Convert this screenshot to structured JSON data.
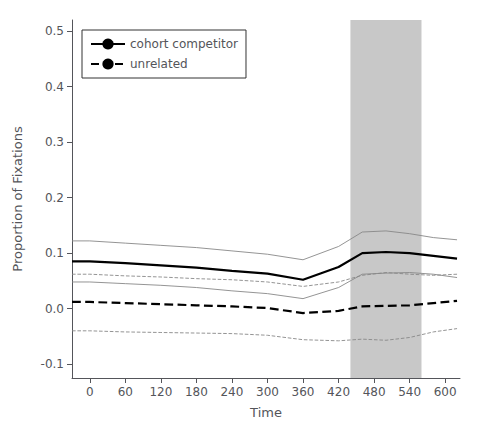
{
  "chart_data": {
    "type": "line",
    "xlabel": "Time",
    "ylabel": "Proportion of Fixations",
    "x": [
      -30,
      0,
      60,
      120,
      180,
      240,
      300,
      360,
      420,
      460,
      500,
      540,
      580,
      620
    ],
    "series": [
      {
        "color": "#888888",
        "line_style": "solid",
        "values": [
          0.122,
          0.122,
          0.118,
          0.114,
          0.11,
          0.104,
          0.098,
          0.088,
          0.112,
          0.138,
          0.14,
          0.135,
          0.128,
          0.124
        ]
      },
      {
        "color": "#888888",
        "line_style": "solid",
        "values": [
          0.048,
          0.048,
          0.045,
          0.042,
          0.038,
          0.032,
          0.027,
          0.018,
          0.038,
          0.062,
          0.064,
          0.065,
          0.062,
          0.056
        ]
      },
      {
        "name": "cohort competitor",
        "color": "#000000",
        "line_style": "solid",
        "values": [
          0.085,
          0.085,
          0.082,
          0.078,
          0.074,
          0.068,
          0.063,
          0.052,
          0.075,
          0.1,
          0.102,
          0.1,
          0.095,
          0.09
        ]
      },
      {
        "color": "#888888",
        "line_style": "dashed",
        "values": [
          0.062,
          0.062,
          0.059,
          0.057,
          0.054,
          0.052,
          0.048,
          0.04,
          0.048,
          0.06,
          0.065,
          0.062,
          0.06,
          0.062
        ]
      },
      {
        "color": "#888888",
        "line_style": "dashed",
        "values": [
          -0.04,
          -0.04,
          -0.042,
          -0.043,
          -0.044,
          -0.045,
          -0.048,
          -0.056,
          -0.058,
          -0.055,
          -0.057,
          -0.052,
          -0.042,
          -0.036
        ]
      },
      {
        "name": "unrelated",
        "color": "#000000",
        "line_style": "dashed",
        "values": [
          0.012,
          0.012,
          0.01,
          0.008,
          0.006,
          0.004,
          0.001,
          -0.008,
          -0.004,
          0.004,
          0.005,
          0.006,
          0.01,
          0.014
        ]
      }
    ],
    "shaded": {
      "x": [
        440,
        560
      ],
      "color": "#b0b0b0"
    },
    "xlim": [
      -30,
      625
    ],
    "ylim": [
      -0.125,
      0.52
    ],
    "xticks": [
      0,
      60,
      120,
      180,
      240,
      300,
      360,
      420,
      480,
      540,
      600
    ],
    "yticks": [
      -0.1,
      {
        "value": 0.0,
        "label": "0.0"
      },
      0.1,
      0.2,
      0.3,
      0.4,
      0.5
    ],
    "grid": false,
    "legend": "upper left"
  }
}
